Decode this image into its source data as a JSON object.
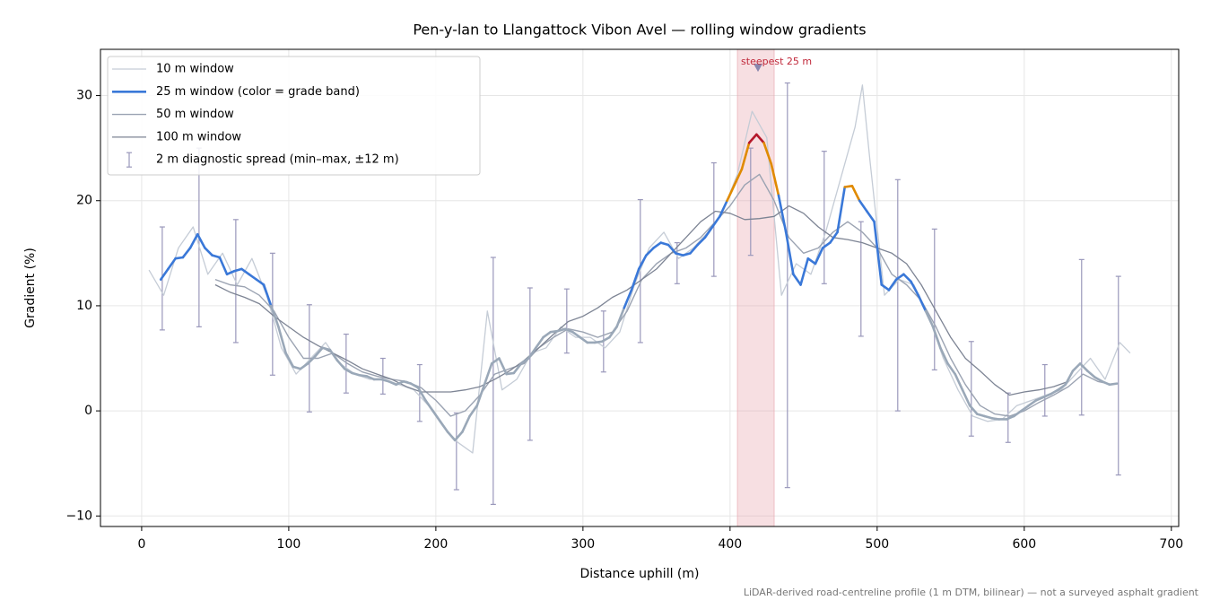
{
  "chart_data": {
    "type": "line",
    "title": "Pen-y-lan to Llangattock Vibon Avel — rolling window gradients",
    "x_label": "Distance uphill (m)",
    "y_label": "Gradient (%)",
    "footnote": "LiDAR-derived road-centreline profile (1 m DTM, bilinear) — not a surveyed asphalt gradient",
    "xlim": [
      -28,
      705
    ],
    "ylim": [
      -11,
      34.4
    ],
    "xticks": [
      0,
      100,
      200,
      300,
      400,
      500,
      600,
      700
    ],
    "yticks": [
      {
        "value": -10,
        "label": "−10"
      },
      0,
      10,
      20,
      30
    ],
    "grid": true,
    "legend": "upper left",
    "series": [
      {
        "name": "10 m window",
        "color": "#c5ccd6",
        "width": 1.3,
        "x": [
          5,
          15,
          25,
          35,
          45,
          55,
          65,
          75,
          85,
          95,
          105,
          115,
          125,
          135,
          145,
          155,
          165,
          175,
          185,
          195,
          205,
          215,
          225,
          235,
          245,
          255,
          265,
          275,
          285,
          295,
          305,
          315,
          325,
          335,
          345,
          355,
          365,
          375,
          385,
          395,
          405,
          415,
          425,
          435,
          445,
          455,
          465,
          475,
          485,
          490,
          495,
          505,
          515,
          525,
          535,
          545,
          555,
          565,
          575,
          585,
          595,
          605,
          615,
          625,
          635,
          645,
          655,
          665,
          672
        ],
        "values": [
          13.4,
          11.0,
          15.5,
          17.5,
          13.0,
          15.0,
          12.0,
          14.5,
          11.0,
          6.0,
          3.5,
          5.0,
          6.5,
          4.5,
          3.5,
          3.0,
          3.0,
          2.5,
          2.0,
          0.5,
          -1.5,
          -3.0,
          -4.0,
          9.5,
          2.0,
          3.0,
          5.5,
          6.0,
          8.0,
          7.0,
          7.0,
          6.0,
          7.5,
          12.0,
          15.5,
          17.0,
          14.5,
          15.5,
          17.0,
          19.0,
          22.5,
          28.5,
          26.0,
          11.0,
          14.0,
          13.0,
          17.0,
          22.0,
          27.0,
          31.0,
          24.0,
          11.0,
          12.5,
          12.0,
          9.0,
          5.0,
          2.0,
          -0.5,
          -1.0,
          -0.8,
          0.5,
          1.0,
          1.5,
          2.0,
          3.5,
          5.0,
          3.0,
          6.5,
          5.5
        ]
      },
      {
        "name": "25 m window (color = grade band)",
        "color": "#9aa8b8",
        "width": 2.6,
        "grade_bands": [
          {
            "min": 10,
            "color": "#3a78d8"
          },
          {
            "min": 20,
            "color": "#e08a00"
          },
          {
            "min": 25,
            "color": "#b5182b"
          }
        ],
        "x": [
          13,
          18,
          23,
          28,
          33,
          38,
          43,
          48,
          53,
          58,
          63,
          68,
          73,
          78,
          83,
          88,
          93,
          98,
          103,
          108,
          113,
          118,
          123,
          128,
          133,
          138,
          143,
          148,
          153,
          158,
          163,
          168,
          173,
          178,
          183,
          188,
          193,
          198,
          203,
          208,
          213,
          218,
          223,
          228,
          233,
          238,
          243,
          248,
          253,
          258,
          263,
          268,
          273,
          278,
          283,
          288,
          293,
          298,
          303,
          308,
          313,
          318,
          323,
          328,
          333,
          338,
          343,
          348,
          353,
          358,
          363,
          368,
          373,
          378,
          383,
          388,
          393,
          398,
          403,
          408,
          413,
          418,
          423,
          428,
          433,
          438,
          443,
          448,
          453,
          458,
          463,
          468,
          473,
          478,
          483,
          488,
          493,
          498,
          503,
          508,
          513,
          518,
          523,
          528,
          533,
          538,
          543,
          548,
          553,
          558,
          563,
          568,
          573,
          578,
          583,
          588,
          593,
          598,
          603,
          608,
          613,
          618,
          623,
          628,
          633,
          638,
          643,
          648,
          653,
          658,
          663
        ],
        "values": [
          12.5,
          13.5,
          14.5,
          14.6,
          15.5,
          16.8,
          15.5,
          14.8,
          14.6,
          13.0,
          13.3,
          13.5,
          13.0,
          12.5,
          12.0,
          10.0,
          8.0,
          5.5,
          4.2,
          4.0,
          4.5,
          5.2,
          6.0,
          5.8,
          4.8,
          4.0,
          3.6,
          3.4,
          3.3,
          3.0,
          3.0,
          2.8,
          2.5,
          2.8,
          2.6,
          2.2,
          1.0,
          0.0,
          -1.0,
          -2.0,
          -2.8,
          -2.0,
          -0.5,
          0.5,
          2.5,
          4.5,
          5.0,
          3.5,
          3.6,
          4.5,
          5.0,
          6.0,
          7.0,
          7.5,
          7.6,
          7.8,
          7.5,
          7.0,
          6.5,
          6.5,
          6.6,
          7.0,
          8.0,
          9.8,
          11.5,
          13.5,
          14.8,
          15.5,
          16.0,
          15.8,
          15.0,
          14.8,
          15.0,
          15.8,
          16.5,
          17.5,
          18.5,
          20.0,
          21.5,
          23.0,
          25.5,
          26.3,
          25.5,
          23.5,
          20.5,
          17.0,
          13.0,
          12.0,
          14.5,
          14.0,
          15.5,
          16.0,
          17.0,
          21.3,
          21.4,
          20.0,
          19.0,
          18.0,
          12.0,
          11.5,
          12.5,
          13.0,
          12.3,
          11.0,
          9.5,
          8.0,
          6.0,
          4.5,
          3.5,
          2.0,
          0.5,
          -0.3,
          -0.5,
          -0.7,
          -0.8,
          -0.8,
          -0.5,
          0.0,
          0.5,
          1.0,
          1.3,
          1.6,
          2.0,
          2.5,
          3.8,
          4.5,
          3.8,
          3.2,
          2.8,
          2.5,
          2.6
        ]
      },
      {
        "name": "50 m window",
        "color": "#9ba3b2",
        "width": 1.4,
        "x": [
          50,
          60,
          70,
          80,
          90,
          100,
          110,
          120,
          130,
          140,
          150,
          160,
          170,
          180,
          190,
          200,
          210,
          220,
          230,
          240,
          250,
          260,
          270,
          280,
          290,
          300,
          310,
          320,
          330,
          340,
          350,
          360,
          370,
          380,
          390,
          400,
          410,
          420,
          430,
          440,
          450,
          460,
          470,
          480,
          490,
          500,
          510,
          520,
          530,
          540,
          550,
          560,
          570,
          580,
          590,
          600,
          610,
          620,
          630,
          640,
          650,
          660
        ],
        "values": [
          12.5,
          12.0,
          11.8,
          11.0,
          9.5,
          7.0,
          5.0,
          5.0,
          5.5,
          4.5,
          3.7,
          3.3,
          3.0,
          2.8,
          2.2,
          1.0,
          -0.5,
          0.0,
          1.5,
          3.5,
          4.0,
          4.5,
          6.0,
          7.0,
          7.8,
          7.5,
          7.0,
          7.5,
          9.5,
          12.5,
          14.0,
          15.0,
          15.5,
          16.5,
          18.0,
          19.5,
          21.5,
          22.5,
          20.0,
          16.5,
          15.0,
          15.5,
          17.0,
          18.0,
          17.0,
          15.5,
          13.0,
          12.0,
          10.5,
          8.0,
          5.0,
          2.5,
          0.5,
          -0.3,
          -0.5,
          0.0,
          0.8,
          1.5,
          2.3,
          3.5,
          2.8,
          2.5
        ]
      },
      {
        "name": "100 m window",
        "color": "#7d8494",
        "width": 1.3,
        "x": [
          50,
          60,
          70,
          80,
          90,
          100,
          110,
          120,
          130,
          140,
          150,
          160,
          170,
          180,
          190,
          200,
          210,
          220,
          230,
          240,
          250,
          260,
          270,
          280,
          290,
          300,
          310,
          320,
          330,
          340,
          350,
          360,
          370,
          380,
          390,
          400,
          410,
          420,
          430,
          440,
          450,
          460,
          470,
          480,
          490,
          500,
          510,
          520,
          530,
          540,
          550,
          560,
          570,
          580,
          590,
          600,
          610,
          620,
          630
        ],
        "values": [
          12.0,
          11.3,
          10.8,
          10.2,
          9.0,
          8.0,
          7.0,
          6.2,
          5.5,
          4.8,
          4.0,
          3.5,
          3.0,
          2.3,
          1.8,
          1.8,
          1.8,
          2.0,
          2.3,
          3.0,
          3.8,
          4.8,
          6.0,
          7.3,
          8.5,
          9.0,
          9.8,
          10.8,
          11.5,
          12.5,
          13.5,
          15.0,
          16.5,
          18.0,
          19.0,
          18.8,
          18.2,
          18.3,
          18.5,
          19.5,
          18.8,
          17.5,
          16.5,
          16.3,
          16.0,
          15.5,
          15.0,
          14.0,
          12.0,
          9.5,
          7.0,
          5.0,
          3.8,
          2.5,
          1.5,
          1.8,
          2.0,
          2.3,
          2.8
        ]
      }
    ],
    "spread": {
      "name": "2 m diagnostic spread (min–max, ±12 m)",
      "color": "#9a98bb",
      "x": [
        14,
        39,
        64,
        89,
        114,
        139,
        164,
        189,
        214,
        239,
        264,
        289,
        314,
        339,
        364,
        389,
        414,
        439,
        464,
        489,
        514,
        539,
        564,
        589,
        614,
        639,
        664
      ],
      "min": [
        7.7,
        8.0,
        6.5,
        3.4,
        -0.1,
        1.7,
        1.6,
        -1.0,
        -7.5,
        -8.9,
        -2.8,
        5.5,
        3.7,
        6.5,
        12.1,
        12.8,
        14.8,
        -7.3,
        12.1,
        7.1,
        0.0,
        3.9,
        -2.4,
        -3.0,
        -0.5,
        -0.4,
        -6.1
      ],
      "max": [
        17.5,
        25.0,
        18.2,
        15.0,
        10.1,
        7.3,
        5.0,
        4.4,
        -0.2,
        14.6,
        11.7,
        11.6,
        9.5,
        20.1,
        16.0,
        23.6,
        25.0,
        31.2,
        24.7,
        18.0,
        22.0,
        17.3,
        6.6,
        1.7,
        4.4,
        14.4,
        12.8
      ]
    },
    "highlight": {
      "from": 405,
      "to": 430,
      "color": "#e8a3ab"
    },
    "annotation": {
      "text": "steepest 25 m",
      "x": 419,
      "y": 32.6,
      "color": "#c0283a",
      "marker_color": "#8a87ae"
    }
  }
}
